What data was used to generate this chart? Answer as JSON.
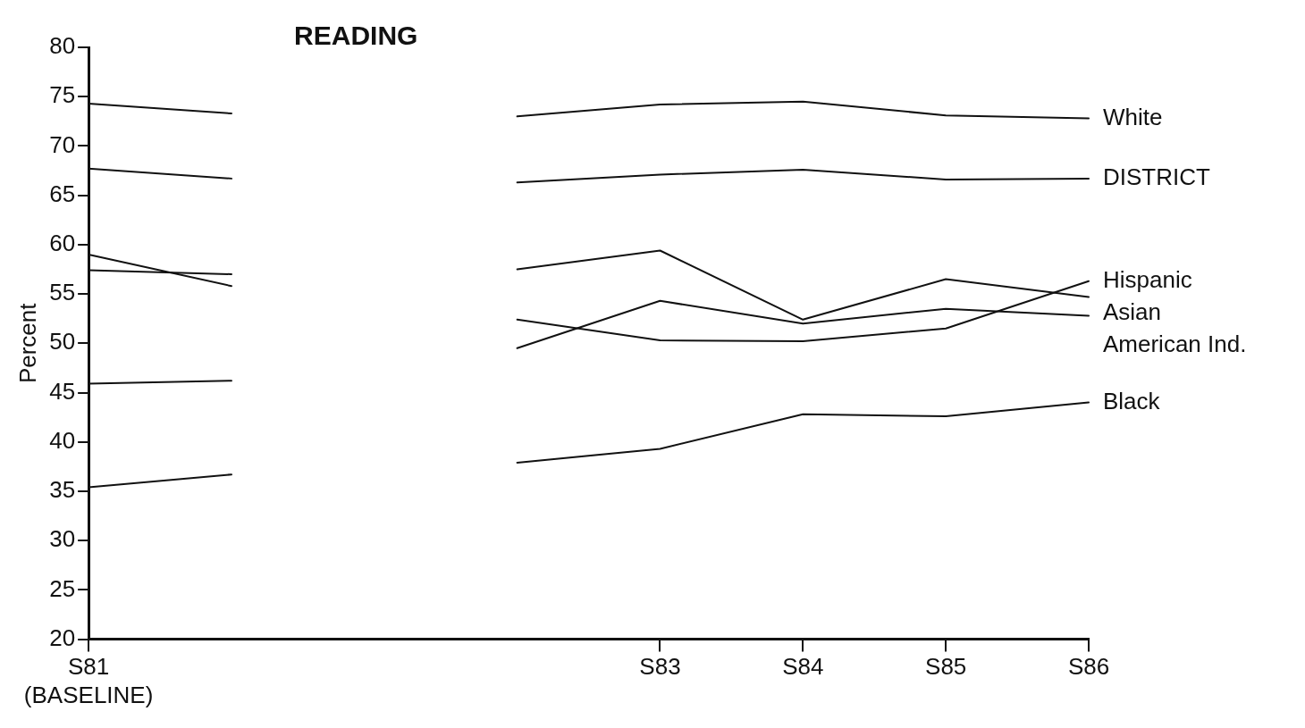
{
  "chart_data": {
    "type": "line",
    "title": "READING",
    "ylabel": "Percent",
    "categories": [
      "S81 (BASELINE)",
      null,
      null,
      null,
      "S83",
      "S84",
      "S85",
      "S86"
    ],
    "ylim": [
      20,
      80
    ],
    "yticks": [
      20,
      25,
      30,
      35,
      40,
      45,
      50,
      55,
      60,
      65,
      70,
      75,
      80
    ],
    "grid": false,
    "legend": false,
    "marker": "none",
    "line_style": "solid",
    "series": [
      {
        "name": "White",
        "color": "#111111",
        "values": [
          74.3,
          73.3,
          null,
          73.0,
          74.2,
          74.5,
          73.1,
          72.8
        ]
      },
      {
        "name": "DISTRICT",
        "color": "#111111",
        "values": [
          67.7,
          66.7,
          null,
          66.3,
          67.1,
          67.6,
          66.6,
          66.7
        ]
      },
      {
        "name": "Asian",
        "color": "#111111",
        "values": [
          59.0,
          55.8,
          null,
          57.5,
          59.4,
          52.4,
          56.5,
          54.7
        ]
      },
      {
        "name": "Hispanic",
        "color": "#111111",
        "values": [
          57.4,
          57.0,
          null,
          52.4,
          50.3,
          50.2,
          51.5,
          56.3
        ]
      },
      {
        "name": "American Ind.",
        "color": "#111111",
        "values": [
          45.9,
          46.2,
          null,
          49.5,
          54.3,
          52.0,
          53.5,
          52.8
        ]
      },
      {
        "name": "Black",
        "color": "#111111",
        "values": [
          35.4,
          36.7,
          null,
          37.9,
          39.3,
          42.8,
          42.6,
          44.0
        ]
      }
    ]
  }
}
